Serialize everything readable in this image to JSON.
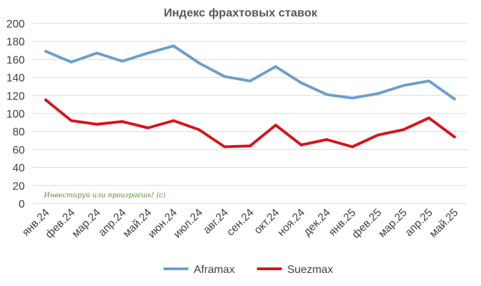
{
  "chart_data": {
    "type": "line",
    "title": "Индекс фрахтовых ставок",
    "categories": [
      "янв.24",
      "фев.24",
      "мар.24",
      "апр.24",
      "май.24",
      "июн.24",
      "июл.24",
      "авг.24",
      "сен.24",
      "окт.24",
      "ноя.24",
      "дек.24",
      "янв.25",
      "фев.25",
      "мар.25",
      "апр.25",
      "май.25"
    ],
    "series": [
      {
        "name": "Aframax",
        "color": "#6a9fcd",
        "values": [
          169,
          157,
          167,
          158,
          167,
          175,
          156,
          141,
          136,
          152,
          134,
          121,
          117,
          122,
          131,
          136,
          116
        ]
      },
      {
        "name": "Suezmax",
        "color": "#d9111a",
        "values": [
          115,
          92,
          88,
          91,
          84,
          92,
          82,
          63,
          64,
          87,
          65,
          71,
          63,
          76,
          82,
          95,
          74
        ]
      }
    ],
    "ylim": [
      0,
      200
    ],
    "yticks": [
      0,
      20,
      40,
      60,
      80,
      100,
      120,
      140,
      160,
      180,
      200
    ],
    "grid": true,
    "legend": "bottom",
    "annotation": "Инвестируй или проиграешь! (с)"
  }
}
